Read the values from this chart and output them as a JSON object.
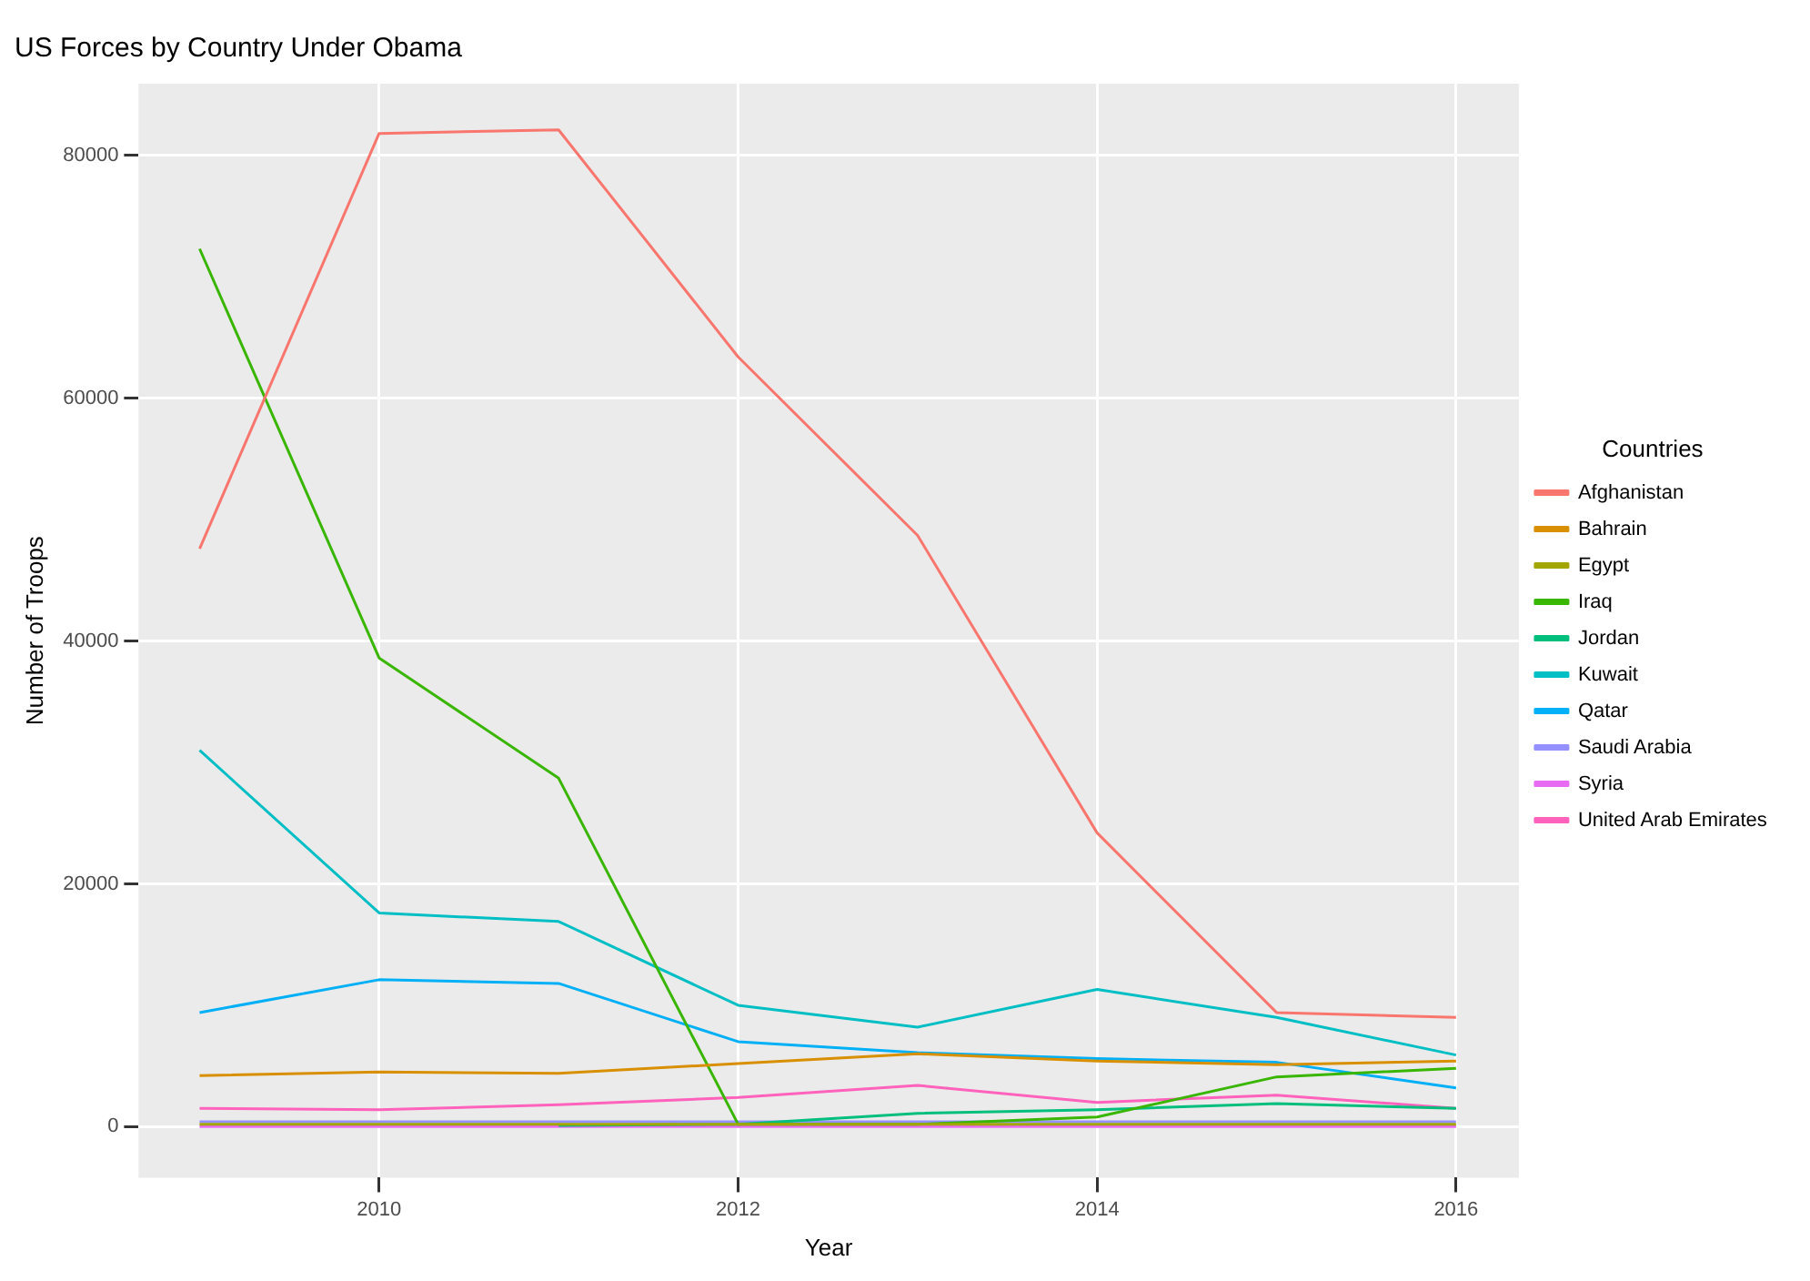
{
  "chart_data": {
    "type": "line",
    "title": "US Forces by Country Under Obama",
    "xlabel": "Year",
    "ylabel": "Number of Troops",
    "legend_title": "Countries",
    "legend": "right",
    "grid": true,
    "marker": "none",
    "line_style": "solid",
    "x": [
      2009,
      2010,
      2011,
      2012,
      2013,
      2014,
      2015,
      2016
    ],
    "xlim": [
      2008.66,
      2016.35
    ],
    "xticks": [
      2010,
      2012,
      2014,
      2016
    ],
    "ylim": [
      -4200,
      85900
    ],
    "yticks": [
      0,
      20000,
      40000,
      60000,
      80000
    ],
    "series": [
      {
        "name": "Afghanistan",
        "color": "#f8766d",
        "values": [
          47600,
          81800,
          82100,
          63400,
          48700,
          24200,
          9400,
          9000
        ]
      },
      {
        "name": "Bahrain",
        "color": "#d89000",
        "values": [
          4200,
          4500,
          4400,
          5200,
          6000,
          5400,
          5100,
          5400
        ]
      },
      {
        "name": "Egypt",
        "color": "#a3a500",
        "values": [
          200,
          200,
          200,
          200,
          200,
          200,
          200,
          200
        ]
      },
      {
        "name": "Iraq",
        "color": "#39b600",
        "values": [
          72300,
          38600,
          28700,
          200,
          200,
          800,
          4100,
          4800
        ]
      },
      {
        "name": "Jordan",
        "color": "#00bf7d",
        "values": [
          null,
          null,
          100,
          200,
          1100,
          1400,
          1900,
          1500
        ]
      },
      {
        "name": "Kuwait",
        "color": "#00bfc4",
        "values": [
          31000,
          17600,
          16900,
          10000,
          8200,
          11300,
          9000,
          5900
        ]
      },
      {
        "name": "Qatar",
        "color": "#00b0f6",
        "values": [
          9400,
          12100,
          11800,
          7000,
          6100,
          5600,
          5300,
          3200
        ]
      },
      {
        "name": "Saudi Arabia",
        "color": "#9590ff",
        "values": [
          400,
          400,
          400,
          400,
          400,
          400,
          400,
          400
        ]
      },
      {
        "name": "Syria",
        "color": "#e76bf3",
        "values": [
          0,
          0,
          0,
          0,
          0,
          0,
          0,
          0
        ]
      },
      {
        "name": "United Arab Emirates",
        "color": "#ff62bc",
        "values": [
          1500,
          1400,
          1800,
          2400,
          3400,
          2000,
          2600,
          1500
        ]
      }
    ]
  }
}
